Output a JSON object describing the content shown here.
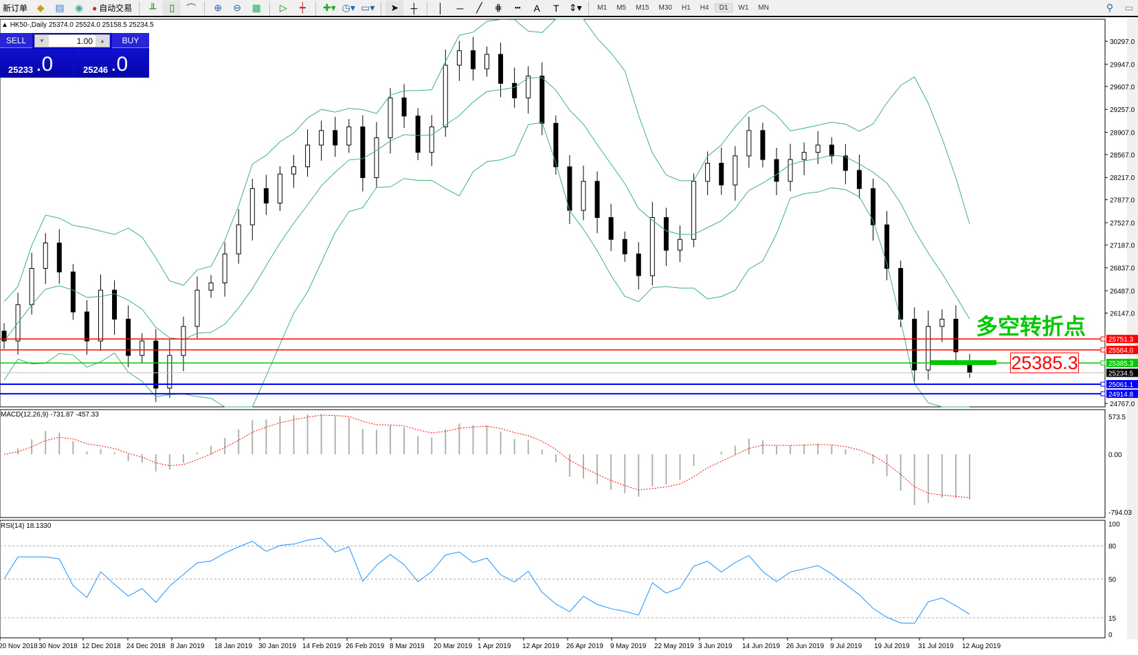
{
  "toolbar": {
    "new_order": "新订单",
    "auto_trading": "自动交易",
    "icons": [
      "market-watch-icon",
      "data-window-icon",
      "signal-icon",
      "auto-trading-icon",
      "bar-chart-icon",
      "candlestick-icon",
      "line-chart-icon",
      "zoom-in-icon",
      "zoom-out-icon",
      "tile-windows-icon",
      "autoscroll-icon",
      "chart-shift-icon",
      "indicators-icon",
      "periods-icon",
      "templates-icon",
      "cursor-icon",
      "crosshair-icon",
      "vertical-line-icon",
      "horizontal-line-icon",
      "trendline-icon",
      "fibonacci-icon",
      "fibo-lines-icon",
      "text-icon",
      "text-label-icon",
      "arrows-icon"
    ],
    "timeframes": [
      "M1",
      "M5",
      "M15",
      "M30",
      "H1",
      "H4",
      "D1",
      "W1",
      "MN"
    ],
    "active_timeframe": "D1"
  },
  "chart_info": "HK50-,Daily  25374.0 25524.0 25158.5 25234.5",
  "trade": {
    "sell": "SELL",
    "buy": "BUY",
    "lots": "1.00",
    "bid_main": "25233",
    "bid_frac": ".0",
    "ask_main": "25246",
    "ask_frac": ".0"
  },
  "annotation": {
    "text": "多空转折点",
    "price_box": "25385.3"
  },
  "macd_label": "MACD(12,26,9) -731.87 -457.33",
  "rsi_label": "RSI(14) 18.1330",
  "colors": {
    "red_line": "#ff0000",
    "green_line": "#00c800",
    "blue_line": "#0000ff",
    "bands": "#3cb371",
    "rsi": "#1e90ff",
    "macd_signal": "#ff0000"
  },
  "chart_data": {
    "type": "candlestick",
    "symbol": "HK50-",
    "timeframe": "Daily",
    "price_ticks": [
      "30297.0",
      "29947.0",
      "29607.0",
      "29257.0",
      "28907.0",
      "28567.0",
      "28217.0",
      "27877.0",
      "27527.0",
      "27187.0",
      "26837.0",
      "26487.0",
      "26147.0",
      "24767.0"
    ],
    "ylim": [
      24767,
      30297
    ],
    "x_ticks": [
      "20 Nov 2018",
      "30 Nov 2018",
      "12 Dec 2018",
      "24 Dec 2018",
      "8 Jan 2019",
      "18 Jan 2019",
      "30 Jan 2019",
      "14 Feb 2019",
      "26 Feb 2019",
      "8 Mar 2019",
      "20 Mar 2019",
      "1 Apr 2019",
      "12 Apr 2019",
      "26 Apr 2019",
      "9 May 2019",
      "22 May 2019",
      "3 Jun 2019",
      "14 Jun 2019",
      "26 Jun 2019",
      "9 Jul 2019",
      "19 Jul 2019",
      "31 Jul 2019",
      "12 Aug 2019"
    ],
    "closes": [
      25721,
      26275,
      26829,
      27217,
      26774,
      26164,
      25721,
      26497,
      26054,
      25500,
      25721,
      25000,
      25500,
      25943,
      26497,
      26607,
      27050,
      27494,
      28048,
      27826,
      28269,
      28380,
      28712,
      28934,
      28712,
      28989,
      28214,
      28823,
      29432,
      29155,
      28601,
      28989,
      29931,
      30153,
      29876,
      30097,
      29654,
      29432,
      29765,
      29044,
      28380,
      27715,
      28158,
      27605,
      27272,
      27050,
      26718,
      27605,
      27106,
      27272,
      28158,
      28435,
      28103,
      28546,
      28934,
      28491,
      28158,
      28491,
      28601,
      28712,
      28546,
      28325,
      28048,
      27494,
      26829,
      26054,
      25278,
      25943,
      26054,
      25555,
      25234
    ],
    "last_bar": {
      "open": 25374.0,
      "high": 25524.0,
      "low": 25158.5,
      "close": 25234.5
    },
    "levels": [
      {
        "price": 25751.3,
        "label": "25751.3",
        "color": "#ff0000"
      },
      {
        "price": 25584.0,
        "label": "25584.0",
        "color": "#ff0000"
      },
      {
        "price": 25385.3,
        "label": "25385.3",
        "color": "#00c800"
      },
      {
        "price": 25234.5,
        "label": "25234.5",
        "color": "#000000"
      },
      {
        "price": 25061.1,
        "label": "25061.1",
        "color": "#0000ff"
      },
      {
        "price": 24914.8,
        "label": "24914.8",
        "color": "#0000ff"
      }
    ],
    "macd": {
      "ticks": [
        "573.5",
        "0.00",
        "-794.03"
      ],
      "range": [
        -794.03,
        573.5
      ],
      "main": -731.87,
      "signal": -457.33
    },
    "rsi": {
      "ticks": [
        "100",
        "80",
        "50",
        "15",
        "0"
      ],
      "levels": [
        80,
        50,
        15
      ],
      "value": 18.133
    }
  }
}
